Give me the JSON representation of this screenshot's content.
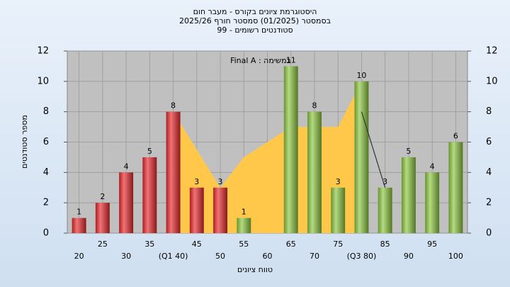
{
  "chart_data": {
    "type": "bar",
    "title": "היסטוגרמת ציונים בקורס - מעבר חום",
    "subtitle": "בסמסטר  (01/2025)  סמסטר חורף 2025/26",
    "subtitle2": "סטודנטים רשומים - 99",
    "annotation": "Final A : במשימה",
    "x_label": "טווח ציונים",
    "y_label": "מספר סטודנטים",
    "categories": [
      "20",
      "25",
      "30",
      "35",
      "(Q1 40)",
      "45",
      "50",
      "55",
      "60",
      "65",
      "70",
      "75",
      "(Q3 80)",
      "85",
      "90",
      "95",
      "100"
    ],
    "values": [
      1,
      2,
      4,
      5,
      8,
      3,
      3,
      1,
      0,
      11,
      8,
      3,
      10,
      3,
      5,
      4,
      6
    ],
    "colors": [
      "#e8282b",
      "#e8282b",
      "#e8282b",
      "#e8282b",
      "#e8282b",
      "#e8282b",
      "#e8282b",
      "#8cc63f",
      "#8cc63f",
      "#8cc63f",
      "#8cc63f",
      "#8cc63f",
      "#8cc63f",
      "#8cc63f",
      "#8cc63f",
      "#8cc63f",
      "#8cc63f"
    ],
    "area": {
      "color": "#ffc84a",
      "values": [
        null,
        null,
        null,
        null,
        8,
        5.5,
        3,
        5,
        6,
        7,
        7,
        7,
        10,
        null,
        null,
        null,
        null
      ]
    },
    "line": {
      "color": "#333333",
      "values": [
        null,
        null,
        null,
        null,
        null,
        null,
        null,
        null,
        null,
        null,
        null,
        null,
        8,
        3,
        null,
        null,
        null
      ]
    },
    "ylim": [
      0,
      12
    ],
    "yticks": [
      0,
      2,
      4,
      6,
      8,
      10,
      12
    ],
    "y2lim": [
      0,
      12
    ],
    "y2ticks": [
      0,
      2,
      4,
      6,
      8,
      10,
      12
    ],
    "grid": true
  }
}
